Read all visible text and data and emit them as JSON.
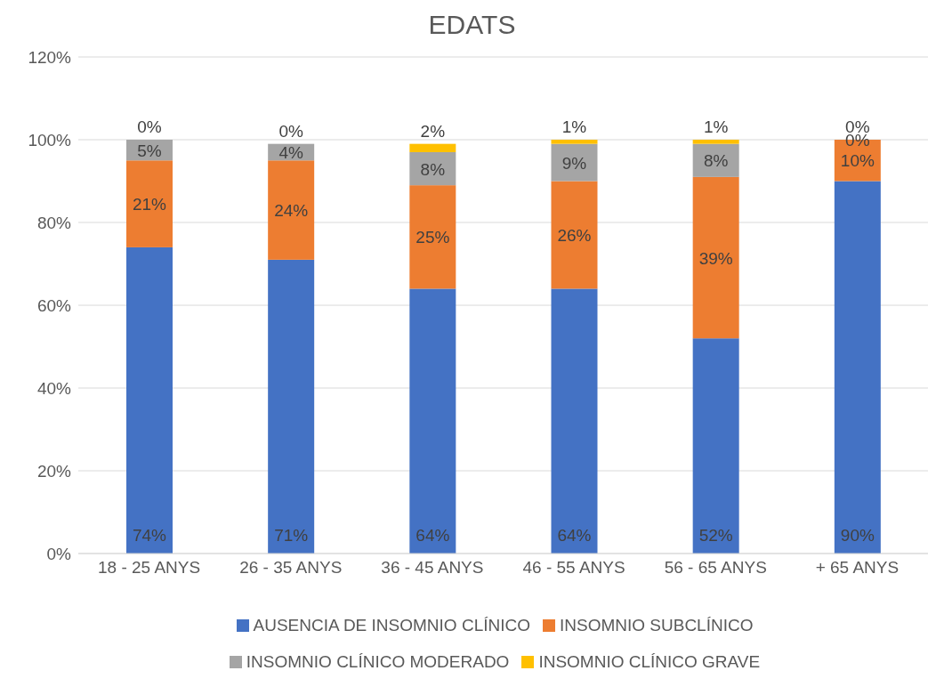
{
  "chart_data": {
    "type": "bar",
    "stacked": true,
    "title": "EDATS",
    "categories": [
      "18 - 25 ANYS",
      "26 - 35 ANYS",
      "36 - 45 ANYS",
      "46 - 55 ANYS",
      "56 - 65 ANYS",
      "+ 65 ANYS"
    ],
    "series": [
      {
        "name": "AUSENCIA DE INSOMNIO CLÍNICO",
        "color": "#4472c4",
        "values": [
          74,
          71,
          64,
          64,
          52,
          90
        ],
        "value_labels": [
          "74%",
          "71%",
          "64%",
          "64%",
          "52%",
          "90%"
        ]
      },
      {
        "name": "INSOMNIO SUBCLÍNICO",
        "color": "#ed7d31",
        "values": [
          21,
          24,
          25,
          26,
          39,
          10
        ],
        "value_labels": [
          "21%",
          "24%",
          "25%",
          "26%",
          "39%",
          "10%"
        ]
      },
      {
        "name": "INSOMNIO CLÍNICO MODERADO",
        "color": "#a5a5a5",
        "values": [
          5,
          4,
          8,
          9,
          8,
          0
        ],
        "value_labels": [
          "5%",
          "4%",
          "8%",
          "9%",
          "8%",
          "0%"
        ]
      },
      {
        "name": "INSOMNIO CLÍNICO GRAVE",
        "color": "#ffc000",
        "values": [
          0,
          0,
          2,
          1,
          1,
          0
        ],
        "value_labels": [
          "0%",
          "0%",
          "2%",
          "1%",
          "1%",
          "0%"
        ]
      }
    ],
    "ylim": [
      0,
      120
    ],
    "yticks": [
      {
        "value": 0,
        "label": "0%"
      },
      {
        "value": 20,
        "label": "20%"
      },
      {
        "value": 40,
        "label": "40%"
      },
      {
        "value": 60,
        "label": "60%"
      },
      {
        "value": 80,
        "label": "80%"
      },
      {
        "value": 100,
        "label": "100%"
      },
      {
        "value": 120,
        "label": "120%"
      }
    ],
    "grid": "y",
    "legend": "bottom"
  }
}
